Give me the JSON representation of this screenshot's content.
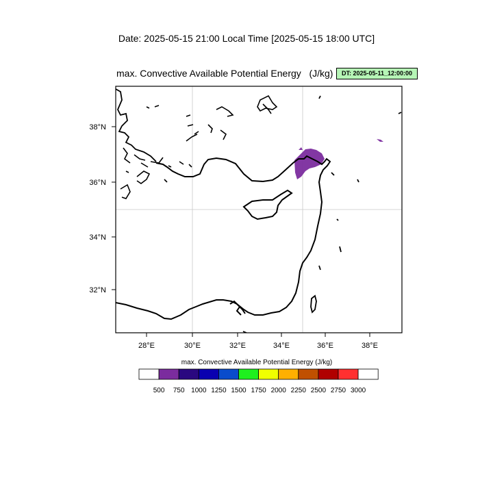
{
  "header": {
    "date_line": "Date: 2025-05-15  21:00 Local Time [2025-05-15  18:00 UTC]",
    "plot_title": "max. Convective Available Potential Energy   (J/kg)",
    "dt_badge": "DT: 2025-05-11_12:00:00"
  },
  "map": {
    "lon_range": [
      26.6,
      39.4
    ],
    "lat_range": [
      30.4,
      39.5
    ],
    "lon_ticks": [
      "28°E",
      "30°E",
      "32°E",
      "34°E",
      "36°E",
      "38°E"
    ],
    "lat_ticks": [
      "38°N",
      "36°N",
      "34°N",
      "32°N"
    ],
    "gridlines": {
      "lon": 30,
      "lat": 35
    },
    "cape_fill_color": "#7b2c9e"
  },
  "colorbar": {
    "title": "max. Convective Available Potential Energy  (J/kg)",
    "colors": [
      "#ffffff",
      "#7b2c9e",
      "#2a0880",
      "#0a00b0",
      "#0a4ccc",
      "#1ef01e",
      "#f0ff00",
      "#ffb000",
      "#c05000",
      "#b00000",
      "#ff3030",
      "#ffffff"
    ],
    "labels": [
      "500",
      "750",
      "1000",
      "1250",
      "1500",
      "1750",
      "2000",
      "2250",
      "2500",
      "2750",
      "3000"
    ]
  }
}
